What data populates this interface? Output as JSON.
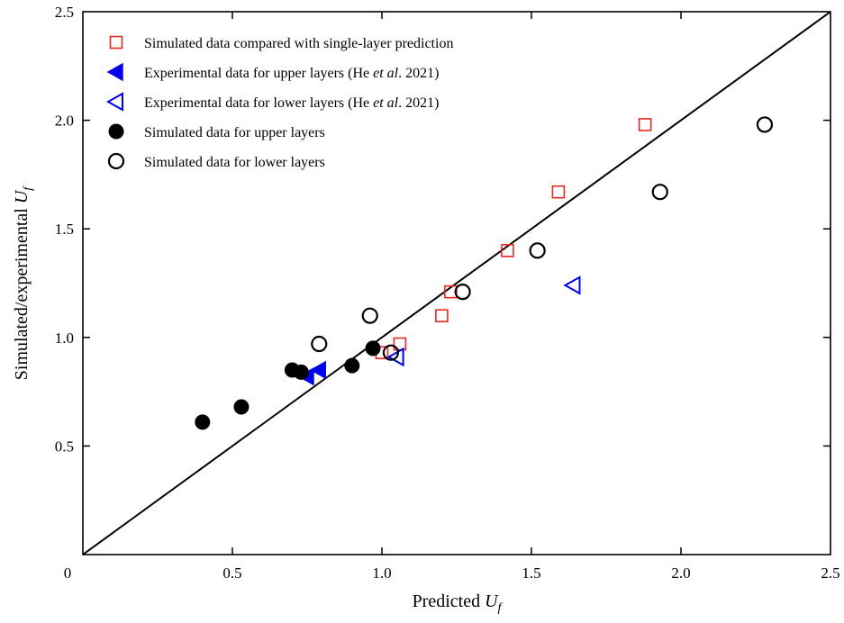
{
  "chart_data": {
    "type": "scatter",
    "xlabel": "Predicted U_f",
    "ylabel": "Simulated/experimental U_f",
    "xlim": [
      0,
      2.5
    ],
    "ylim": [
      0,
      2.5
    ],
    "x_ticks": [
      "0",
      "0.5",
      "1.0",
      "1.5",
      "2.0",
      "2.5"
    ],
    "y_ticks": [
      "0.5",
      "1.0",
      "1.5",
      "2.0",
      "2.5"
    ],
    "reference_line": {
      "x": [
        0,
        2.5
      ],
      "y": [
        0,
        2.5
      ]
    },
    "legend_position": "top-left",
    "series": [
      {
        "name": "Simulated data compared with single-layer prediction",
        "marker": "square-open",
        "color": "#e8281e",
        "points": [
          [
            1.0,
            0.93
          ],
          [
            1.06,
            0.97
          ],
          [
            1.2,
            1.1
          ],
          [
            1.23,
            1.21
          ],
          [
            1.42,
            1.4
          ],
          [
            1.59,
            1.67
          ],
          [
            1.88,
            1.98
          ]
        ]
      },
      {
        "name": "Experimental data for upper layers (He et al. 2021)",
        "marker": "triangle-left-filled",
        "color": "#0000ee",
        "points": [
          [
            0.75,
            0.82
          ],
          [
            0.79,
            0.85
          ]
        ]
      },
      {
        "name": "Experimental data for lower layers (He et al. 2021)",
        "marker": "triangle-left-open",
        "color": "#0000ee",
        "points": [
          [
            1.05,
            0.91
          ],
          [
            1.64,
            1.24
          ]
        ]
      },
      {
        "name": "Simulated data for upper layers",
        "marker": "circle-filled",
        "color": "#000000",
        "points": [
          [
            0.4,
            0.61
          ],
          [
            0.53,
            0.68
          ],
          [
            0.7,
            0.85
          ],
          [
            0.73,
            0.84
          ],
          [
            0.9,
            0.87
          ],
          [
            0.97,
            0.95
          ]
        ]
      },
      {
        "name": "Simulated data for lower layers",
        "marker": "circle-open",
        "color": "#000000",
        "points": [
          [
            0.79,
            0.97
          ],
          [
            0.96,
            1.1
          ],
          [
            1.03,
            0.93
          ],
          [
            1.27,
            1.21
          ],
          [
            1.52,
            1.4
          ],
          [
            1.93,
            1.67
          ],
          [
            2.28,
            1.98
          ]
        ]
      }
    ]
  },
  "legend_labels": [
    {
      "text": "Simulated data compared with single-layer prediction"
    },
    {
      "pre": "Experimental data for upper layers (He ",
      "italic": "et al",
      "post": ". 2021)"
    },
    {
      "pre": "Experimental data for lower layers (He ",
      "italic": "et al",
      "post": ". 2021)"
    },
    {
      "text": "Simulated data for upper layers"
    },
    {
      "text": "Simulated data for lower layers"
    }
  ],
  "axis_titles": {
    "x_main": "Predicted ",
    "y_main": "Simulated/experimental ",
    "u_symbol": "U",
    "f_symbol": "f"
  }
}
